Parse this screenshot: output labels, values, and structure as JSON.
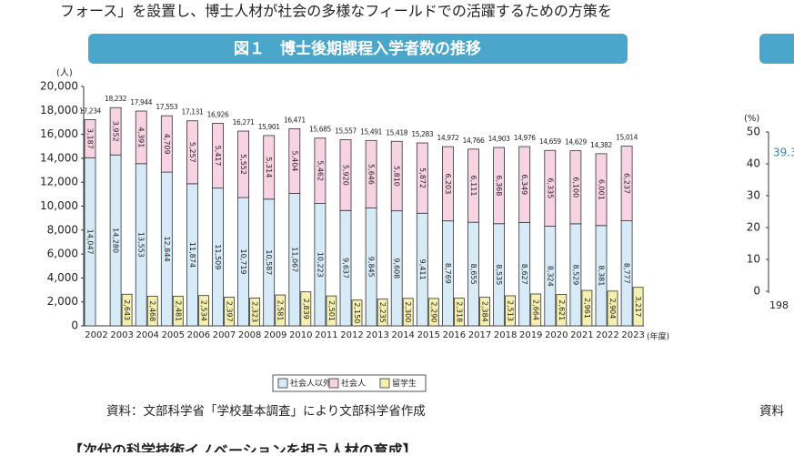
{
  "page": {
    "intro_text": "フォース」を設置し、博士人材が社会の多様なフィールドでの活躍するための方策を",
    "source": "資料：文部科学省「学校基本調査」により文部科学省作成",
    "next_heading": "【次代の科学技術イノベーションを担う人材の育成】"
  },
  "right_panel": {
    "y_unit": "(%)",
    "yticks": [
      0,
      10,
      20,
      30,
      40,
      50
    ],
    "point_label": "39.3",
    "x_label": "198",
    "source": "資料"
  },
  "chart_data": {
    "type": "bar",
    "title": "図１　博士後期課程入学者数の推移",
    "y_unit": "(人)",
    "x_unit": "(年度)",
    "categories": [
      "2002",
      "2003",
      "2004",
      "2005",
      "2006",
      "2007",
      "2008",
      "2009",
      "2010",
      "2011",
      "2012",
      "2013",
      "2014",
      "2015",
      "2016",
      "2017",
      "2018",
      "2019",
      "2020",
      "2021",
      "2022",
      "2023"
    ],
    "series": [
      {
        "name": "社会人以外",
        "color": "#d6ebf7",
        "values": [
          14047,
          14280,
          13553,
          12844,
          11874,
          11509,
          10719,
          10587,
          11067,
          10223,
          9637,
          9845,
          9608,
          9411,
          8769,
          8655,
          8535,
          8627,
          8324,
          8529,
          8381,
          8777
        ],
        "value_labels": [
          "14,047",
          "14,280",
          "13,553",
          "12,844",
          "11,874",
          "11,509",
          "10,719",
          "10,587",
          "11,067",
          "10,223",
          "9,637",
          "9,845",
          "9,608",
          "9,411",
          "8,769",
          "8,655",
          "8,535",
          "8,627",
          "8,324",
          "8,529",
          "8,381",
          "8,777"
        ]
      },
      {
        "name": "社会人",
        "color": "#f7d3e3",
        "values": [
          3187,
          3952,
          4391,
          4709,
          5257,
          5417,
          5552,
          5314,
          5404,
          5462,
          5920,
          5646,
          5810,
          5872,
          6203,
          6111,
          6368,
          6349,
          6335,
          6100,
          6001,
          6237
        ],
        "value_labels": [
          "3,187",
          "3,952",
          "4,391",
          "4,709",
          "5,257",
          "5,417",
          "5,552",
          "5,314",
          "5,404",
          "5,462",
          "5,920",
          "5,646",
          "5,810",
          "5,872",
          "6,203",
          "6,111",
          "6,368",
          "6,349",
          "6,335",
          "6,100",
          "6,001",
          "6,237"
        ]
      },
      {
        "name": "留学生",
        "color": "#f5efb0",
        "values": [
          null,
          2643,
          2468,
          2481,
          2534,
          2397,
          2323,
          2581,
          2839,
          2501,
          2150,
          2235,
          2300,
          2290,
          2318,
          2384,
          2513,
          2664,
          2621,
          2961,
          2904,
          3217
        ],
        "value_labels": [
          null,
          "2,643",
          "2,468",
          "2,481",
          "2,534",
          "2,397",
          "2,323",
          "2,581",
          "2,839",
          "2,501",
          "2,150",
          "2,235",
          "2,300",
          "2,290",
          "2,318",
          "2,384",
          "2,513",
          "2,664",
          "2,621",
          "2,961",
          "2,904",
          "3,217"
        ]
      }
    ],
    "totals": [
      17234,
      18232,
      17944,
      17553,
      17131,
      16926,
      16271,
      15901,
      16471,
      15685,
      15557,
      15491,
      15418,
      15283,
      14972,
      14766,
      14903,
      14976,
      14659,
      14629,
      14382,
      15014
    ],
    "total_labels": [
      "17,234",
      "18,232",
      "17,944",
      "17,553",
      "17,131",
      "16,926",
      "16,271",
      "15,901",
      "16,471",
      "15,685",
      "15,557",
      "15,491",
      "15,418",
      "15,283",
      "14,972",
      "14,766",
      "14,903",
      "14,976",
      "14,659",
      "14,629",
      "14,382",
      "15,014"
    ],
    "ylim": [
      0,
      20000
    ],
    "yticks": [
      0,
      {
        "value": 2000,
        "label": "2,000"
      },
      {
        "value": 4000,
        "label": "4,000"
      },
      {
        "value": 6000,
        "label": "6,000"
      },
      {
        "value": 8000,
        "label": "8,000"
      },
      {
        "value": 10000,
        "label": "10,000"
      },
      {
        "value": 12000,
        "label": "12,000"
      },
      {
        "value": 14000,
        "label": "14,000"
      },
      {
        "value": 16000,
        "label": "16,000"
      },
      {
        "value": 18000,
        "label": "18,000"
      },
      {
        "value": 20000,
        "label": "20,000"
      }
    ],
    "grid": false,
    "legend": "bottom"
  }
}
